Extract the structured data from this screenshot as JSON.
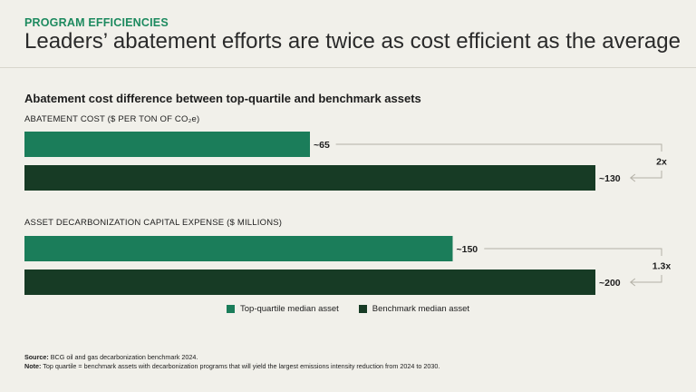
{
  "header": {
    "eyebrow": "PROGRAM EFFICIENCIES",
    "headline": "Leaders’ abatement efforts are twice as cost efficient as the average"
  },
  "colors": {
    "top_quartile": "#1b7d5a",
    "benchmark": "#173b25",
    "accent_text": "#1d8a5f",
    "bracket": "#b3b0a6"
  },
  "chart_data": {
    "type": "bar",
    "orientation": "horizontal",
    "title": "Abatement cost difference between top-quartile and benchmark assets",
    "groups": [
      {
        "label": "ABATEMENT COST ($ PER TON OF CO₂e)",
        "bars": [
          {
            "series": "Top-quartile median asset",
            "value": 65,
            "label": "~65"
          },
          {
            "series": "Benchmark median asset",
            "value": 130,
            "label": "~130"
          }
        ],
        "ratio_label": "2x",
        "max": 130
      },
      {
        "label": "ASSET DECARBONIZATION CAPITAL EXPENSE ($ MILLIONS)",
        "bars": [
          {
            "series": "Top-quartile median asset",
            "value": 150,
            "label": "~150"
          },
          {
            "series": "Benchmark median asset",
            "value": 200,
            "label": "~200"
          }
        ],
        "ratio_label": "1.3x",
        "max": 200
      }
    ],
    "legend": [
      {
        "name": "Top-quartile median asset",
        "color": "#1b7d5a"
      },
      {
        "name": "Benchmark median asset",
        "color": "#173b25"
      }
    ]
  },
  "footer": {
    "source_label": "Source:",
    "source_text": "BCG oil and gas decarbonization benchmark 2024.",
    "note_label": "Note:",
    "note_text": "Top quartile = benchmark assets with decarbonization programs that will yield the largest emissions intensity reduction from 2024 to 2030."
  }
}
